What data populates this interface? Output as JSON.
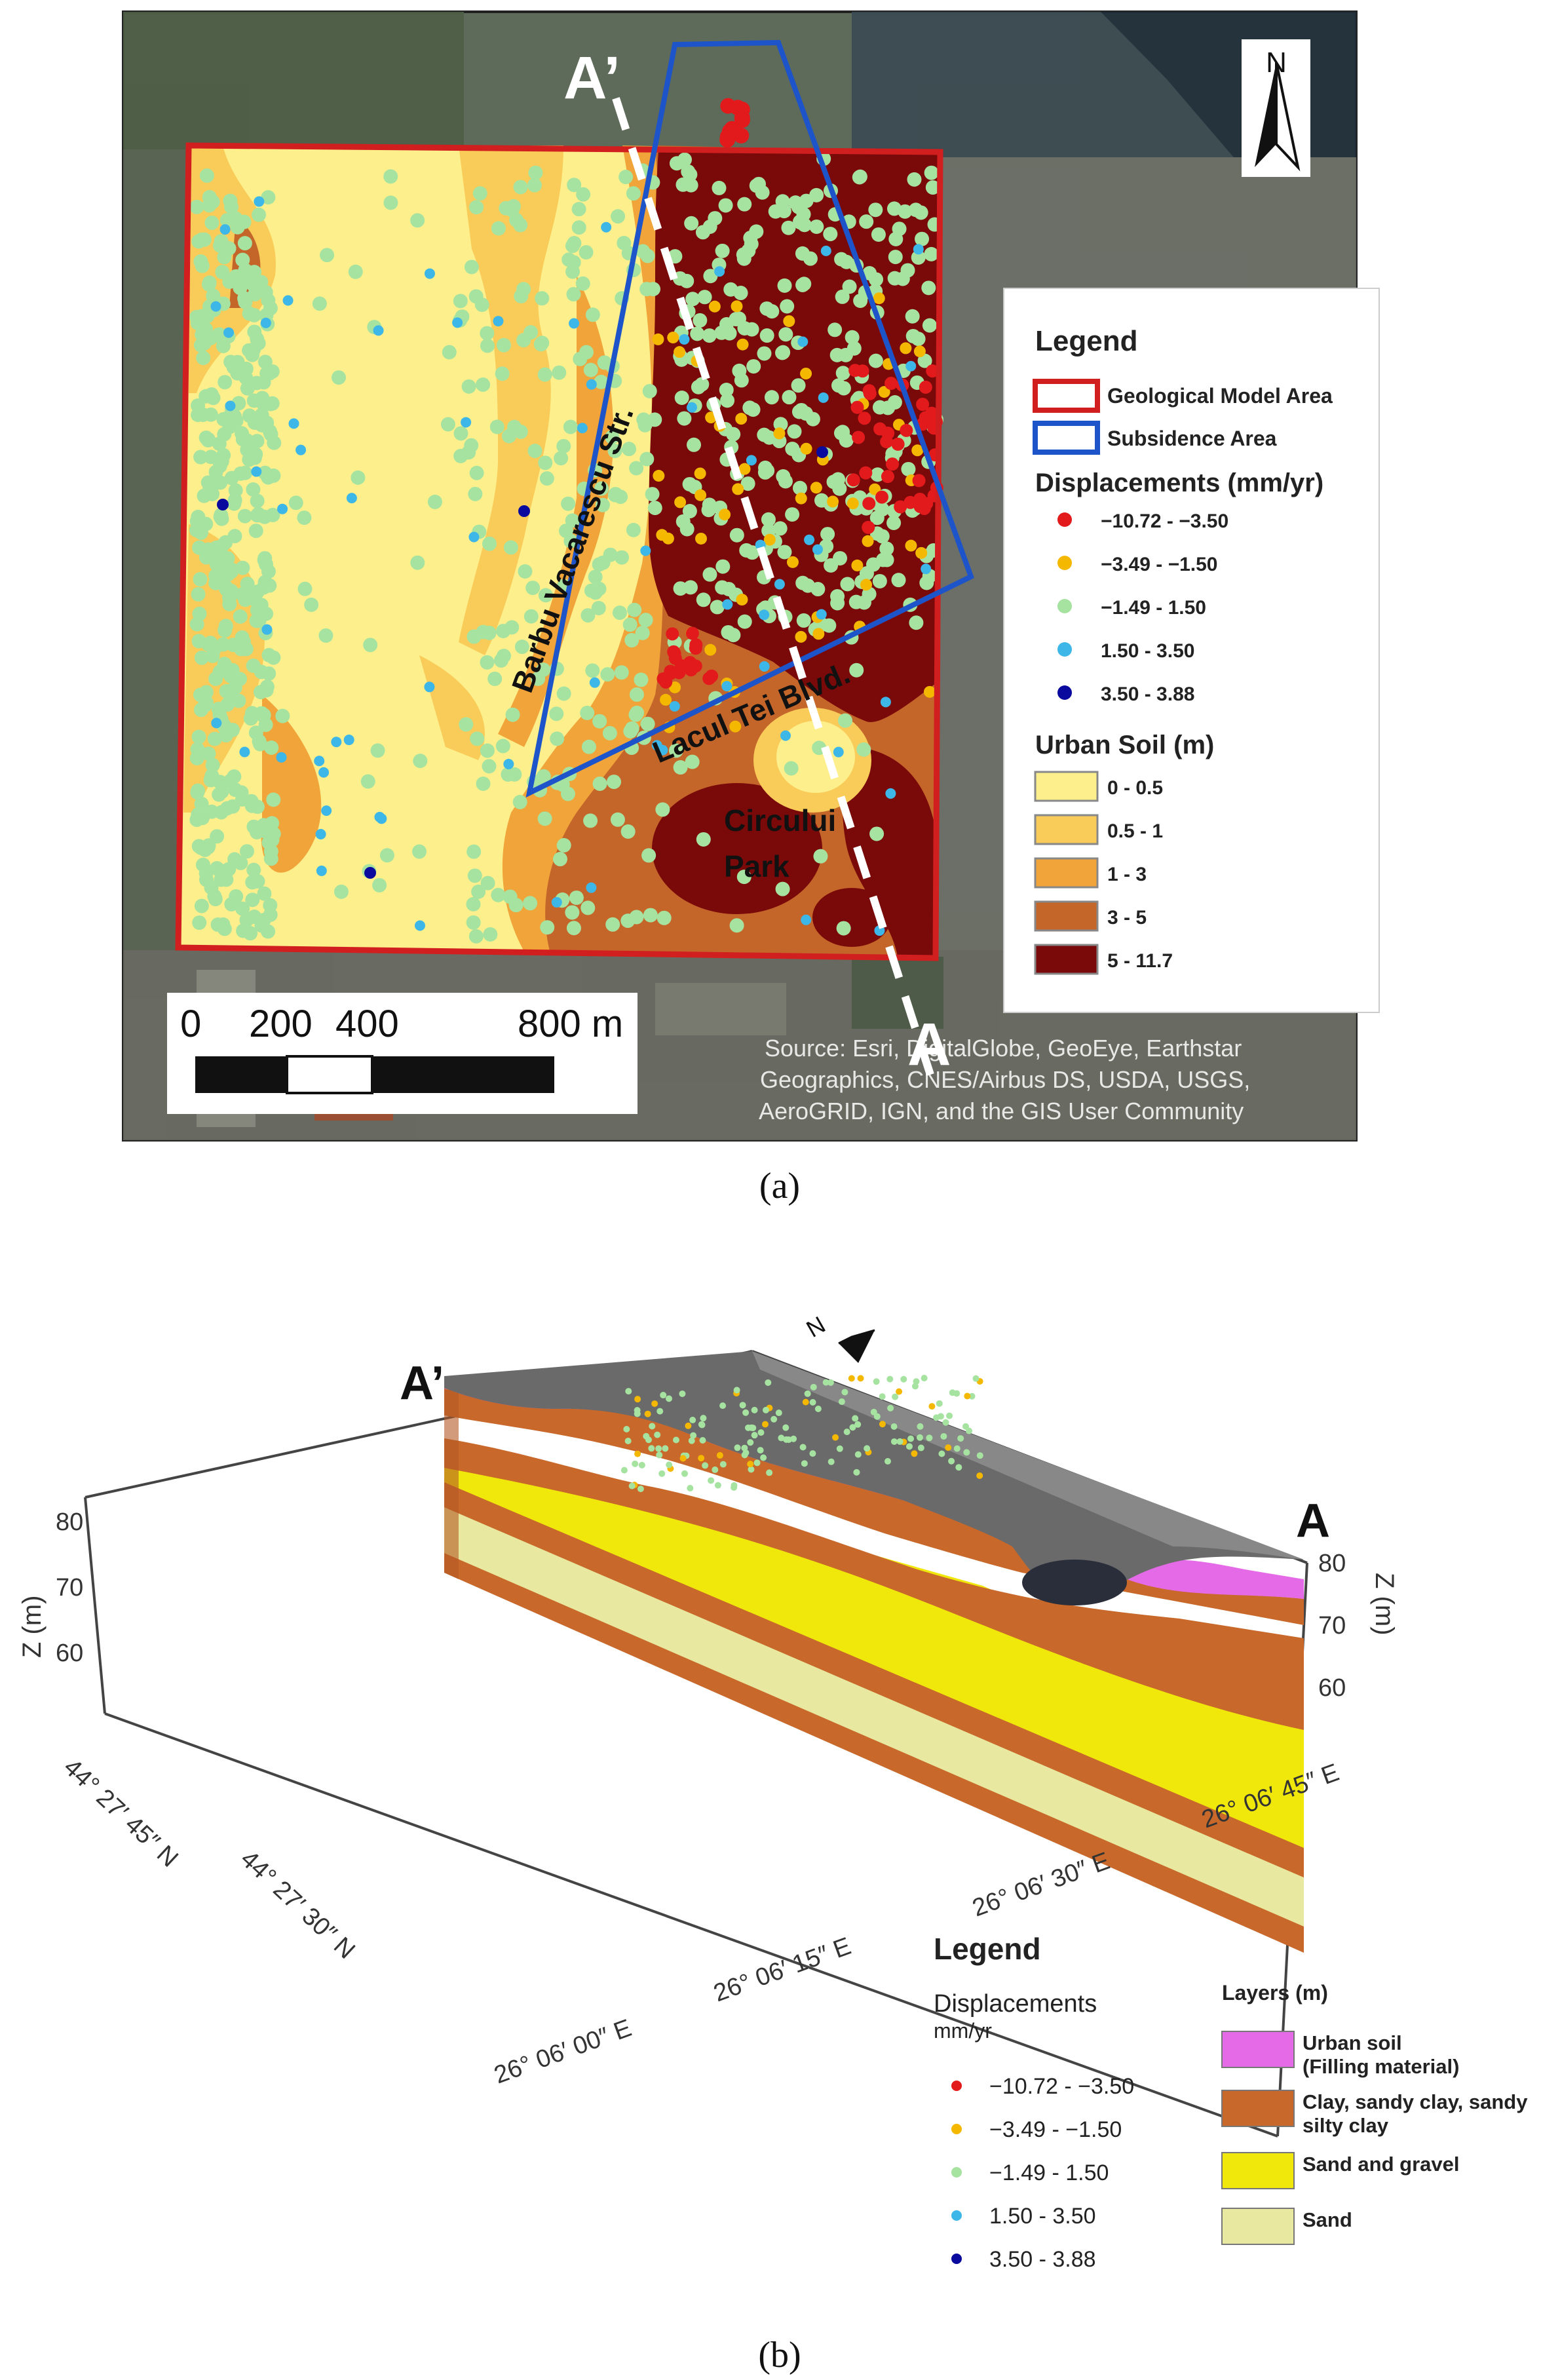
{
  "panel_a": {
    "caption": "(a)",
    "street_barbu": "Barbu Vacarescu Str.",
    "street_lacul": "Lacul Tei Blvd.",
    "park_line1": "Circului",
    "park_line2": "Park",
    "profile_start": "A’",
    "profile_end": "A",
    "north": "N",
    "scalebar": {
      "tick_0": "0",
      "tick_200": "200",
      "tick_400": "400",
      "tick_800": "800 m"
    },
    "source_lines": [
      "Source: Esri, DigitalGlobe, GeoEye, Earthstar",
      "Geographics, CNES/Airbus DS, USDA, USGS,",
      "AeroGRID, IGN, and the GIS User Community"
    ],
    "legend": {
      "title": "Legend",
      "geo_area": "Geological Model Area",
      "sub_area": "Subsidence Area",
      "disp_title": "Displacements (mm/yr)",
      "disp_items": [
        {
          "label": "−10.72 - −3.50",
          "color": "#e31a1c"
        },
        {
          "label": "−3.49 - −1.50",
          "color": "#f5b800"
        },
        {
          "label": "−1.49 - 1.50",
          "color": "#a6e3a1"
        },
        {
          "label": "1.50 - 3.50",
          "color": "#3db6e8"
        },
        {
          "label": "3.50 - 3.88",
          "color": "#0a0a9e"
        }
      ],
      "soil_title": "Urban Soil (m)",
      "soil_items": [
        {
          "label": "0 - 0.5",
          "color": "#fdf08c"
        },
        {
          "label": "0.5 - 1",
          "color": "#f9cc5a"
        },
        {
          "label": "1 - 3",
          "color": "#f0a43a"
        },
        {
          "label": "3 - 5",
          "color": "#c4662a"
        },
        {
          "label": "5  - 11.7",
          "color": "#7a0a0a"
        }
      ]
    }
  },
  "panel_b": {
    "caption": "(b)",
    "profile_start": "A’",
    "profile_end": "A",
    "north": "N",
    "z_axis_label": "Z (m)",
    "z_ticks_left": [
      "80",
      "70",
      "60"
    ],
    "z_ticks_right": [
      "80",
      "70",
      "60"
    ],
    "lat_ticks": [
      "44° 27′ 45″ N",
      "44° 27′ 30″ N"
    ],
    "lon_ticks": [
      "26° 06′ 00″ E",
      "26° 06′ 15″ E",
      "26° 06′ 30″ E",
      "26° 06′ 45″ E"
    ],
    "legend": {
      "title": "Legend",
      "disp_title_line1": "Displacements",
      "disp_title_line2": "mm/yr",
      "disp_items": [
        {
          "label": "−10.72 - −3.50",
          "color": "#e31a1c"
        },
        {
          "label": "−3.49 - −1.50",
          "color": "#f5b800"
        },
        {
          "label": "−1.49 - 1.50",
          "color": "#a6e3a1"
        },
        {
          "label": "1.50 - 3.50",
          "color": "#3db6e8"
        },
        {
          "label": "3.50 - 3.88",
          "color": "#0a0a9e"
        }
      ],
      "layers_title": "Layers (m)",
      "layer_items": [
        {
          "label_line1": "Urban soil",
          "label_line2": "(Filling material)",
          "color": "#e46ae8"
        },
        {
          "label_line1": "Clay, sandy clay, sandy",
          "label_line2": "silty clay",
          "color": "#c8682a"
        },
        {
          "label_line1": "Sand and gravel",
          "label_line2": "",
          "color": "#f0e80a"
        },
        {
          "label_line1": "Sand",
          "label_line2": "",
          "color": "#e8e8a0"
        }
      ]
    }
  }
}
